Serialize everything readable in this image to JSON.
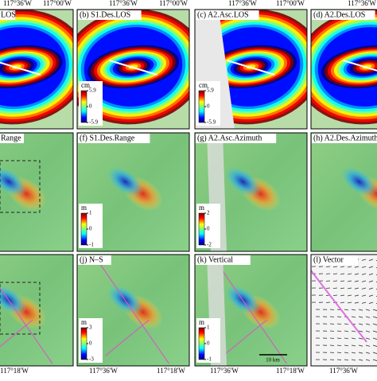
{
  "top_labels": [
    "117°36'W",
    "117°00'W",
    "117°36'W",
    "117°00'W",
    "117°36'W",
    "117°00'W",
    "117°36'W"
  ],
  "bottom_labels": [
    "117°18'W",
    "117°36'W",
    "117°18'W",
    "117°36'W",
    "117°18'W",
    "117°36'W"
  ],
  "panels": [
    {
      "label": "LOS"
    },
    {
      "label": "(b) S1.Des.LOS",
      "colorbar": {
        "unit": "cm",
        "ticks": [
          5.9,
          0,
          -5.9
        ]
      }
    },
    {
      "label": "(c) A2.Asc.LOS",
      "colorbar": {
        "unit": "cm",
        "ticks": [
          5.9,
          0,
          -5.9
        ]
      }
    },
    {
      "label": "(d) A2.Des.LOS"
    },
    {
      "label": "Range"
    },
    {
      "label": "(f) S1.Des.Range",
      "colorbar": {
        "unit": "m",
        "ticks": [
          1,
          0,
          -1
        ]
      }
    },
    {
      "label": "(g) A2.Asc.Azimuth",
      "colorbar": {
        "unit": "m",
        "ticks": [
          2,
          0,
          -2
        ]
      }
    },
    {
      "label": "(h) A2.Des.Azimuth"
    },
    {
      "label": null
    },
    {
      "label": "(j) N–S",
      "colorbar": {
        "unit": "m",
        "ticks": [
          3,
          0,
          -3
        ]
      }
    },
    {
      "label": "(k) Vertical",
      "colorbar": {
        "unit": "m",
        "ticks": [
          1,
          0,
          -1
        ]
      },
      "scale_bar": "10 km"
    },
    {
      "label": "(l) Vector"
    }
  ]
}
